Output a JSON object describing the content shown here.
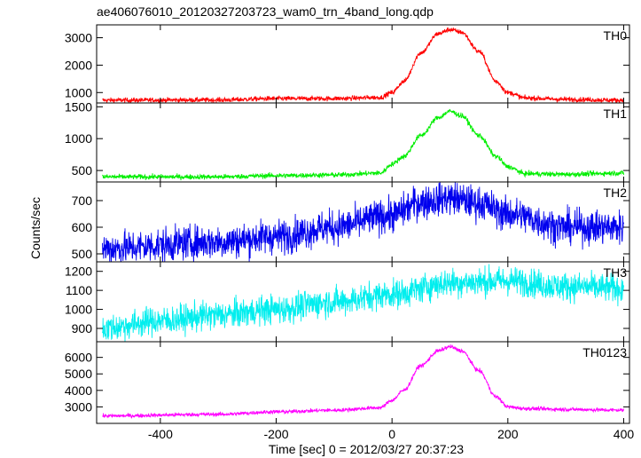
{
  "chart_data": {
    "type": "line",
    "title": "ae406076010_20120327203723_wam0_trn_4band_long.qdp",
    "xlabel": "Time [sec] 0 = 2012/03/27 20:37:23",
    "ylabel": "Counts/sec",
    "xlim": [
      -510,
      410
    ],
    "x_ticks": [
      -400,
      -200,
      0,
      200,
      400
    ],
    "grid": false,
    "panels": [
      {
        "name": "TH0",
        "color": "#ff0000",
        "ylim": [
          620,
          3470
        ],
        "y_ticks": [
          1000,
          2000,
          3000
        ],
        "profile": {
          "t": [
            -500,
            -300,
            -200,
            -100,
            -20,
            0,
            20,
            50,
            80,
            100,
            120,
            150,
            180,
            200,
            230,
            300,
            400
          ],
          "v": [
            720,
            730,
            780,
            780,
            820,
            1000,
            1400,
            2450,
            3150,
            3300,
            3200,
            2500,
            1400,
            1000,
            800,
            750,
            720
          ]
        },
        "noise": 45
      },
      {
        "name": "TH1",
        "color": "#00ee00",
        "ylim": [
          320,
          1560
        ],
        "y_ticks": [
          500,
          1000,
          1500
        ],
        "profile": {
          "t": [
            -500,
            -300,
            -200,
            -100,
            -20,
            0,
            20,
            50,
            80,
            100,
            120,
            150,
            180,
            200,
            230,
            300,
            400
          ],
          "v": [
            400,
            400,
            420,
            430,
            460,
            600,
            720,
            1050,
            1330,
            1430,
            1360,
            1050,
            720,
            560,
            450,
            440,
            460
          ]
        },
        "noise": 20
      },
      {
        "name": "TH2",
        "color": "#0000ee",
        "ylim": [
          470,
          770
        ],
        "y_ticks": [
          500,
          600,
          700
        ],
        "profile": {
          "t": [
            -500,
            -300,
            -200,
            -100,
            0,
            50,
            100,
            150,
            200,
            300,
            400
          ],
          "v": [
            520,
            545,
            565,
            600,
            645,
            695,
            710,
            690,
            650,
            600,
            600
          ]
        },
        "noise": 32
      },
      {
        "name": "TH3",
        "color": "#00eeee",
        "ylim": [
          830,
          1250
        ],
        "y_ticks": [
          900,
          1000,
          1100,
          1200
        ],
        "profile": {
          "t": [
            -500,
            -400,
            -300,
            -200,
            -100,
            0,
            100,
            200,
            300,
            400
          ],
          "v": [
            900,
            940,
            970,
            1000,
            1040,
            1080,
            1140,
            1150,
            1120,
            1110
          ]
        },
        "noise": 38
      },
      {
        "name": "TH0123",
        "color": "#ff00ff",
        "ylim": [
          2000,
          6950
        ],
        "y_ticks": [
          3000,
          4000,
          5000,
          6000
        ],
        "profile": {
          "t": [
            -500,
            -300,
            -200,
            -100,
            -20,
            0,
            20,
            50,
            80,
            100,
            120,
            150,
            180,
            200,
            230,
            300,
            400
          ],
          "v": [
            2450,
            2550,
            2700,
            2800,
            2950,
            3400,
            4000,
            5500,
            6400,
            6650,
            6400,
            5200,
            3600,
            3000,
            2900,
            2850,
            2800
          ]
        },
        "noise": 60
      }
    ]
  }
}
